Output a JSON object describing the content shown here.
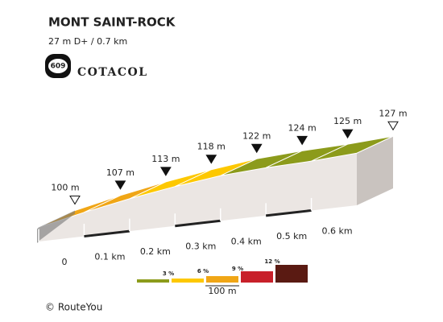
{
  "chart_data": {
    "type": "profile",
    "title": "MONT SAINT-ROCK",
    "subtitle": "27 m D+ / 0.7 km",
    "badge": "609",
    "brand": "COTACOL",
    "credit": "© RouteYou",
    "x": [
      0,
      0.1,
      0.2,
      0.3,
      0.4,
      0.5,
      0.6,
      0.7
    ],
    "values": [
      100,
      107,
      113,
      118,
      122,
      124,
      125,
      127
    ],
    "value_labels": [
      "100 m",
      "107 m",
      "113 m",
      "118 m",
      "122 m",
      "124 m",
      "125 m",
      "127 m"
    ],
    "segment_colors": [
      "#f0a616",
      "#f0a616",
      "#fdc800",
      "#fdc800",
      "#8c9b1b",
      "#8c9b1b",
      "#8c9b1b"
    ],
    "xlim": [
      0,
      0.7
    ],
    "ylim": [
      90,
      130
    ],
    "xticks": [
      0,
      {
        "value": 0.1,
        "label": "0.1 km"
      },
      {
        "value": 0.2,
        "label": "0.2 km"
      },
      {
        "value": 0.3,
        "label": "0.3 km"
      },
      {
        "value": 0.4,
        "label": "0.4 km"
      },
      {
        "value": 0.5,
        "label": "0.5 km"
      },
      {
        "value": 0.6,
        "label": "0.6 km"
      }
    ],
    "grade_legend": {
      "colors": [
        "#8c9b1b",
        "#fdc800",
        "#f0a616",
        "#c8202a",
        "#5a1a12"
      ],
      "labels": [
        "3 %",
        "6 %",
        "9 %",
        "12 %"
      ],
      "scale": "100 m"
    }
  }
}
